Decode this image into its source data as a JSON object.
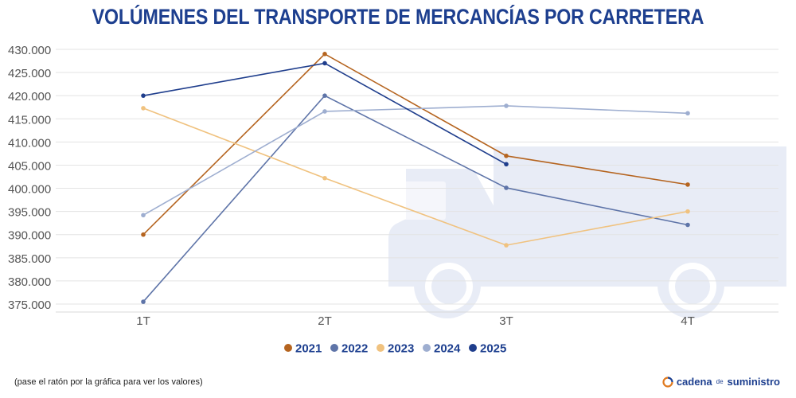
{
  "title": "VOLÚMENES DEL TRANSPORTE DE MERCANCÍAS POR CARRETERA",
  "footnote": "(pase el ratón por la gráfica para ver los valores)",
  "brand": {
    "part1": "cadena",
    "part2": "de",
    "part3": "suministro"
  },
  "chart_data": {
    "type": "line",
    "categories": [
      "1T",
      "2T",
      "3T",
      "4T"
    ],
    "ylim": [
      375000,
      430000
    ],
    "yticks": [
      375000,
      380000,
      385000,
      390000,
      395000,
      400000,
      405000,
      410000,
      415000,
      420000,
      425000,
      430000
    ],
    "ytick_labels": [
      "375.000",
      "380.000",
      "385.000",
      "390.000",
      "395.000",
      "400.000",
      "405.000",
      "410.000",
      "415.000",
      "420.000",
      "425.000",
      "430.000"
    ],
    "grid": true,
    "legend_position": "bottom",
    "series": [
      {
        "name": "2021",
        "color": "#b5641f",
        "values": [
          390000,
          429000,
          407000,
          400800
        ]
      },
      {
        "name": "2022",
        "color": "#5e74a8",
        "values": [
          375500,
          420000,
          400100,
          392100
        ]
      },
      {
        "name": "2023",
        "color": "#f0c27f",
        "values": [
          417300,
          402200,
          387700,
          395000
        ]
      },
      {
        "name": "2024",
        "color": "#9eaed0",
        "values": [
          394200,
          416600,
          417800,
          416200
        ]
      },
      {
        "name": "2025",
        "color": "#1e3d8c",
        "values": [
          420000,
          427000,
          405200,
          null
        ]
      }
    ]
  }
}
